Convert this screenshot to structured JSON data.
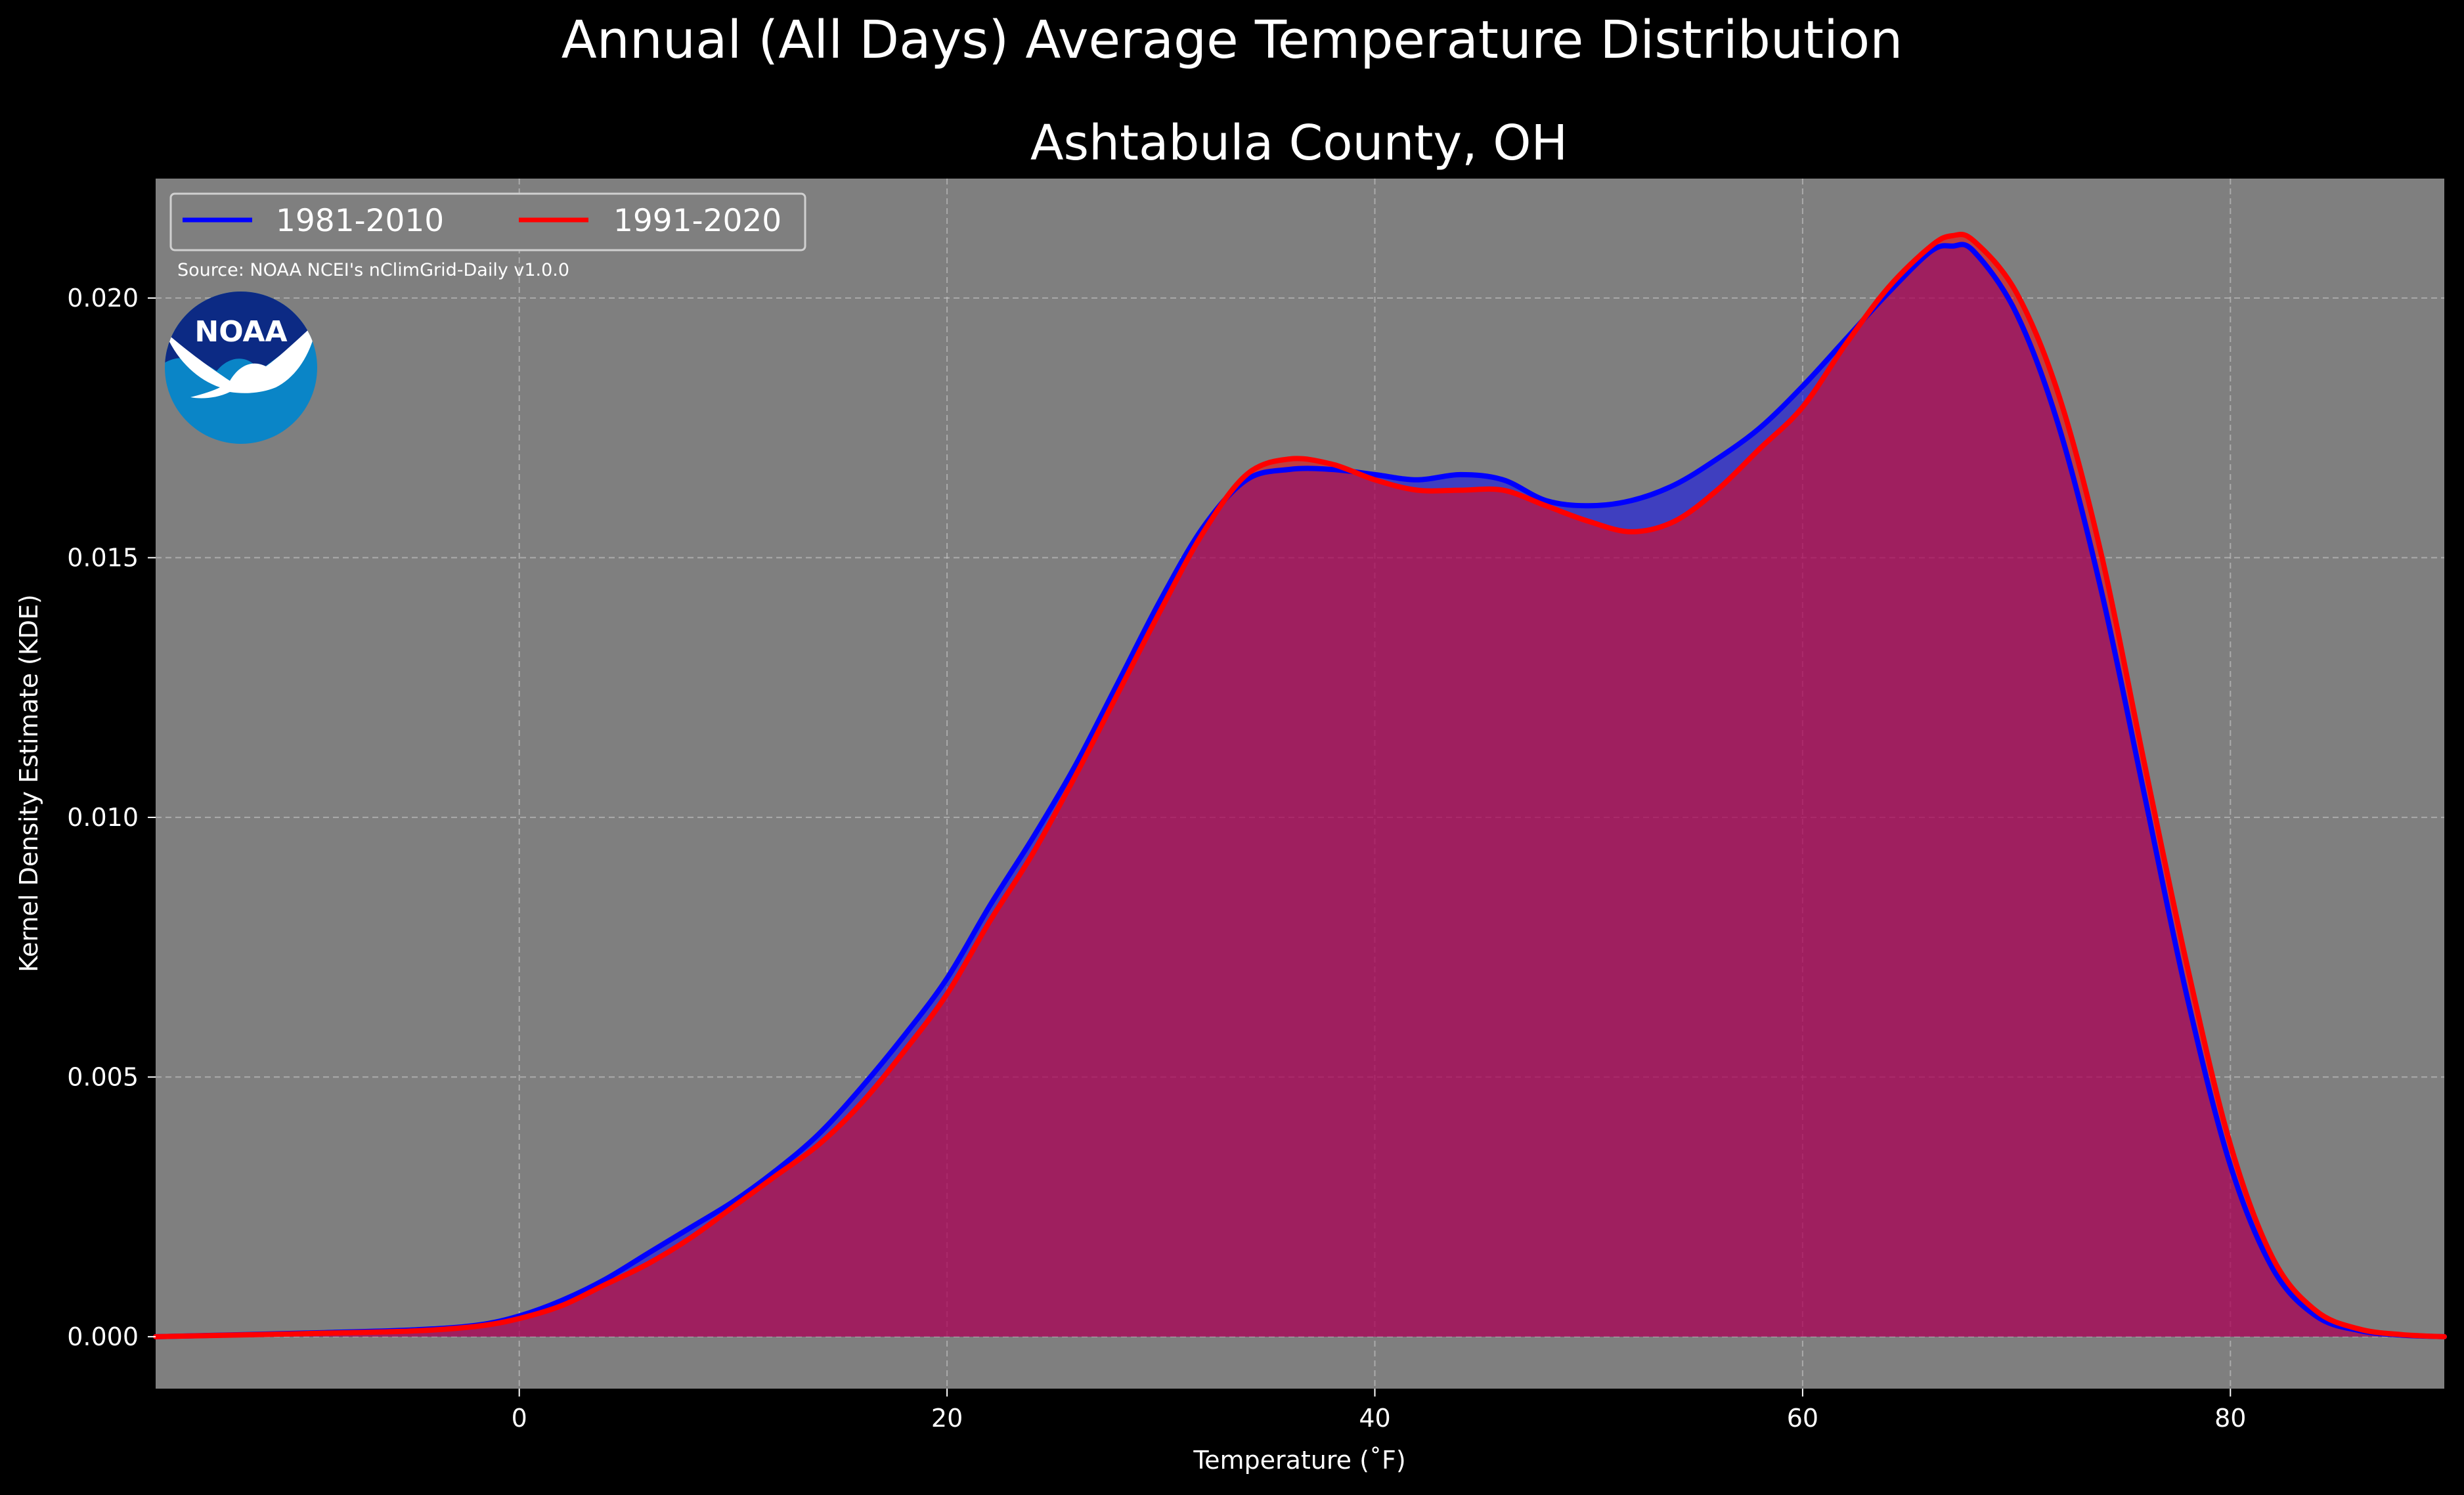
{
  "chart_data": {
    "type": "area",
    "title": "Annual (All Days) Average Temperature Distribution",
    "subtitle": "Ashtabula County, OH",
    "xlabel": "Temperature (˚F)",
    "ylabel": "Kernel Density Estimate (KDE)",
    "xlim": [
      -17,
      90
    ],
    "ylim": [
      -0.001,
      0.0223
    ],
    "x_ticks": [
      0,
      20,
      40,
      60,
      80
    ],
    "y_ticks": [
      0.0,
      0.005,
      0.01,
      0.015,
      0.02
    ],
    "y_tick_labels": [
      "0.000",
      "0.005",
      "0.010",
      "0.015",
      "0.020"
    ],
    "grid": true,
    "legend_position": "top-left",
    "source": "Source: NOAA NCEI's nClimGrid-Daily v1.0.0",
    "logo_text": "NOAA",
    "background": "#7f7f7f",
    "series": [
      {
        "name": "1981-2010",
        "color": "#0000ff",
        "x": [
          -17,
          -10,
          -5,
          -2,
          0,
          2,
          4,
          6,
          8,
          10,
          12,
          14,
          16,
          18,
          20,
          22,
          24,
          26,
          28,
          30,
          32,
          34,
          36,
          38,
          40,
          42,
          44,
          46,
          48,
          50,
          52,
          54,
          56,
          58,
          60,
          62,
          64,
          66,
          67,
          68,
          70,
          72,
          74,
          76,
          78,
          80,
          82,
          84,
          86,
          88,
          90
        ],
        "y": [
          0.0,
          7e-05,
          0.00013,
          0.00022,
          0.0004,
          0.0007,
          0.0011,
          0.0016,
          0.0021,
          0.0026,
          0.0032,
          0.0039,
          0.0048,
          0.0058,
          0.0069,
          0.0083,
          0.0096,
          0.011,
          0.0126,
          0.0142,
          0.0156,
          0.0165,
          0.0167,
          0.0167,
          0.0166,
          0.0165,
          0.0166,
          0.0165,
          0.0161,
          0.016,
          0.0161,
          0.0164,
          0.0169,
          0.0175,
          0.0183,
          0.0192,
          0.0201,
          0.0209,
          0.021,
          0.0209,
          0.0197,
          0.0175,
          0.0143,
          0.0104,
          0.0065,
          0.0033,
          0.0013,
          0.0004,
          0.00012,
          3e-05,
          0.0
        ]
      },
      {
        "name": "1991-2020",
        "color": "#ff0000",
        "x": [
          -17,
          -10,
          -5,
          -2,
          0,
          2,
          4,
          6,
          8,
          10,
          12,
          14,
          16,
          18,
          20,
          22,
          24,
          26,
          28,
          30,
          32,
          34,
          36,
          38,
          40,
          42,
          44,
          46,
          48,
          50,
          52,
          54,
          56,
          58,
          60,
          62,
          64,
          66,
          67,
          68,
          70,
          72,
          74,
          76,
          78,
          80,
          82,
          84,
          86,
          88,
          90
        ],
        "y": [
          0.0,
          6e-05,
          0.00011,
          0.0002,
          0.00035,
          0.0006,
          0.001,
          0.0014,
          0.0019,
          0.0025,
          0.0031,
          0.0037,
          0.0045,
          0.0055,
          0.0066,
          0.008,
          0.0093,
          0.0108,
          0.0124,
          0.014,
          0.0155,
          0.0166,
          0.0169,
          0.0168,
          0.0165,
          0.0163,
          0.0163,
          0.0163,
          0.016,
          0.0157,
          0.0155,
          0.0157,
          0.0163,
          0.0171,
          0.0179,
          0.0191,
          0.0202,
          0.021,
          0.0212,
          0.0211,
          0.0201,
          0.0181,
          0.015,
          0.011,
          0.0071,
          0.0037,
          0.0015,
          0.0005,
          0.00015,
          4e-05,
          0.0
        ]
      }
    ]
  }
}
